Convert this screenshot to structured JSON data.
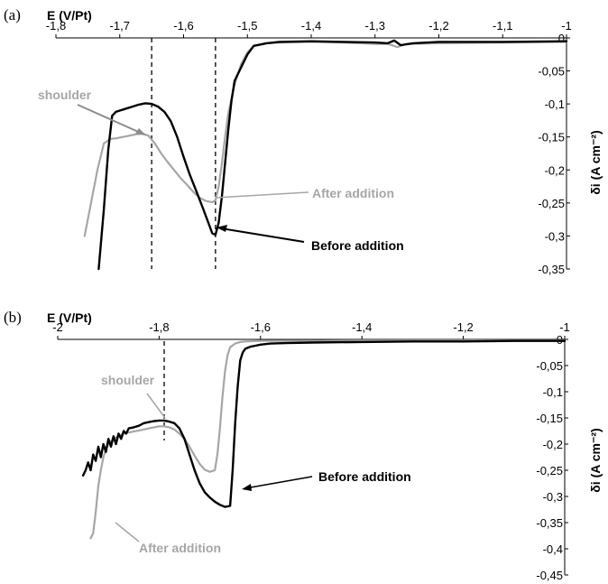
{
  "chart_data": [
    {
      "type": "line",
      "panel_label": "(a)",
      "xlabel": "E (V/Pt)",
      "ylabel": "δi (A cm⁻²)",
      "xlim": [
        -1.8,
        -1.0
      ],
      "ylim": [
        -0.35,
        0.0
      ],
      "x_ticks": [
        "-1,8",
        "-1,7",
        "-1,6",
        "-1,5",
        "-1,4",
        "-1,3",
        "-1,2",
        "-1,1",
        "-1"
      ],
      "y_ticks": [
        "0",
        "-0,05",
        "-0,1",
        "-0,15",
        "-0,2",
        "-0,25",
        "-0,3",
        "-0,35"
      ],
      "annotations": {
        "shoulder": "shoulder",
        "after": "After addition",
        "before": "Before addition"
      },
      "dashed_lines_x": [
        -1.65,
        -1.55
      ],
      "series": [
        {
          "name": "Before addition",
          "color": "#000000",
          "x": [
            -1.733,
            -1.725,
            -1.718,
            -1.712,
            -1.706,
            -1.7,
            -1.69,
            -1.68,
            -1.67,
            -1.66,
            -1.65,
            -1.64,
            -1.63,
            -1.62,
            -1.61,
            -1.6,
            -1.59,
            -1.58,
            -1.57,
            -1.56,
            -1.555,
            -1.55,
            -1.545,
            -1.54,
            -1.535,
            -1.53,
            -1.525,
            -1.52,
            -1.51,
            -1.5,
            -1.49,
            -1.47,
            -1.45,
            -1.4,
            -1.35,
            -1.3,
            -1.28,
            -1.27,
            -1.26,
            -1.24,
            -1.2,
            -1.1,
            -1.0
          ],
          "y": [
            -0.35,
            -0.26,
            -0.17,
            -0.118,
            -0.112,
            -0.11,
            -0.107,
            -0.104,
            -0.101,
            -0.099,
            -0.1,
            -0.104,
            -0.112,
            -0.126,
            -0.15,
            -0.18,
            -0.208,
            -0.232,
            -0.257,
            -0.283,
            -0.296,
            -0.298,
            -0.28,
            -0.24,
            -0.19,
            -0.14,
            -0.095,
            -0.065,
            -0.045,
            -0.025,
            -0.012,
            -0.008,
            -0.006,
            -0.005,
            -0.006,
            -0.007,
            -0.008,
            -0.004,
            -0.011,
            -0.008,
            -0.006,
            -0.006,
            -0.005
          ]
        },
        {
          "name": "After addition",
          "color": "#a6a6a6",
          "x": [
            -1.755,
            -1.745,
            -1.735,
            -1.725,
            -1.715,
            -1.705,
            -1.695,
            -1.685,
            -1.675,
            -1.665,
            -1.655,
            -1.645,
            -1.635,
            -1.625,
            -1.615,
            -1.605,
            -1.595,
            -1.585,
            -1.575,
            -1.565,
            -1.555,
            -1.55,
            -1.545,
            -1.54,
            -1.535,
            -1.53,
            -1.52,
            -1.51,
            -1.5,
            -1.49,
            -1.47,
            -1.45,
            -1.4,
            -1.35,
            -1.3,
            -1.28,
            -1.265,
            -1.26,
            -1.25,
            -1.2,
            -1.1,
            -1.0
          ],
          "y": [
            -0.3,
            -0.25,
            -0.2,
            -0.16,
            -0.153,
            -0.152,
            -0.15,
            -0.148,
            -0.146,
            -0.145,
            -0.148,
            -0.16,
            -0.175,
            -0.188,
            -0.2,
            -0.212,
            -0.222,
            -0.233,
            -0.242,
            -0.247,
            -0.249,
            -0.246,
            -0.225,
            -0.19,
            -0.15,
            -0.115,
            -0.07,
            -0.04,
            -0.022,
            -0.012,
            -0.008,
            -0.007,
            -0.006,
            -0.007,
            -0.009,
            -0.009,
            -0.014,
            -0.012,
            -0.009,
            -0.008,
            -0.007,
            -0.006
          ]
        }
      ]
    },
    {
      "type": "line",
      "panel_label": "(b)",
      "xlabel": "E (V/Pt)",
      "ylabel": "δi (A cm⁻²)",
      "xlim": [
        -2.0,
        -1.0
      ],
      "ylim": [
        -0.45,
        0.0
      ],
      "x_ticks": [
        "-2",
        "-1,8",
        "-1,6",
        "-1,4",
        "-1,2",
        "-1"
      ],
      "y_ticks": [
        "0",
        "-0,05",
        "-0,1",
        "-0,15",
        "-0,2",
        "-0,25",
        "-0,3",
        "-0,35",
        "-0,4",
        "-0,45"
      ],
      "annotations": {
        "shoulder": "shoulder",
        "after": "After addition",
        "before": "Before addition"
      },
      "dashed_lines_x": [
        -1.79
      ],
      "series": [
        {
          "name": "Before addition",
          "color": "#000000",
          "x": [
            -1.95,
            -1.945,
            -1.94,
            -1.935,
            -1.93,
            -1.925,
            -1.92,
            -1.915,
            -1.91,
            -1.905,
            -1.9,
            -1.895,
            -1.89,
            -1.885,
            -1.88,
            -1.875,
            -1.87,
            -1.865,
            -1.86,
            -1.85,
            -1.84,
            -1.83,
            -1.82,
            -1.81,
            -1.8,
            -1.79,
            -1.78,
            -1.77,
            -1.76,
            -1.75,
            -1.74,
            -1.73,
            -1.72,
            -1.71,
            -1.7,
            -1.69,
            -1.68,
            -1.67,
            -1.66,
            -1.655,
            -1.65,
            -1.645,
            -1.64,
            -1.635,
            -1.63,
            -1.62,
            -1.61,
            -1.6,
            -1.58,
            -1.55,
            -1.5,
            -1.4,
            -1.3,
            -1.2,
            -1.1,
            -1.0
          ],
          "y": [
            -0.26,
            -0.25,
            -0.235,
            -0.25,
            -0.22,
            -0.232,
            -0.205,
            -0.225,
            -0.2,
            -0.215,
            -0.19,
            -0.205,
            -0.185,
            -0.2,
            -0.18,
            -0.19,
            -0.175,
            -0.18,
            -0.17,
            -0.168,
            -0.165,
            -0.16,
            -0.158,
            -0.156,
            -0.155,
            -0.155,
            -0.157,
            -0.16,
            -0.17,
            -0.19,
            -0.22,
            -0.25,
            -0.275,
            -0.292,
            -0.302,
            -0.31,
            -0.316,
            -0.32,
            -0.318,
            -0.25,
            -0.16,
            -0.09,
            -0.04,
            -0.025,
            -0.018,
            -0.014,
            -0.012,
            -0.01,
            -0.008,
            -0.007,
            -0.006,
            -0.005,
            -0.004,
            -0.004,
            -0.003,
            -0.003
          ]
        },
        {
          "name": "After addition",
          "color": "#a6a6a6",
          "x": [
            -1.935,
            -1.93,
            -1.925,
            -1.92,
            -1.915,
            -1.91,
            -1.905,
            -1.9,
            -1.89,
            -1.88,
            -1.87,
            -1.86,
            -1.85,
            -1.84,
            -1.83,
            -1.82,
            -1.81,
            -1.8,
            -1.79,
            -1.78,
            -1.77,
            -1.76,
            -1.75,
            -1.74,
            -1.73,
            -1.72,
            -1.71,
            -1.7,
            -1.69,
            -1.685,
            -1.68,
            -1.675,
            -1.67,
            -1.665,
            -1.66,
            -1.65,
            -1.64,
            -1.63,
            -1.6,
            -1.55,
            -1.5,
            -1.4,
            -1.3,
            -1.2,
            -1.1,
            -1.0
          ],
          "y": [
            -0.38,
            -0.37,
            -0.33,
            -0.28,
            -0.25,
            -0.225,
            -0.21,
            -0.2,
            -0.19,
            -0.185,
            -0.18,
            -0.178,
            -0.176,
            -0.174,
            -0.172,
            -0.17,
            -0.168,
            -0.166,
            -0.166,
            -0.168,
            -0.172,
            -0.18,
            -0.19,
            -0.205,
            -0.222,
            -0.238,
            -0.249,
            -0.253,
            -0.25,
            -0.22,
            -0.17,
            -0.11,
            -0.06,
            -0.03,
            -0.015,
            -0.008,
            -0.005,
            -0.004,
            -0.003,
            -0.003,
            -0.003,
            -0.002,
            -0.002,
            -0.002,
            -0.002,
            -0.002
          ]
        }
      ]
    }
  ]
}
